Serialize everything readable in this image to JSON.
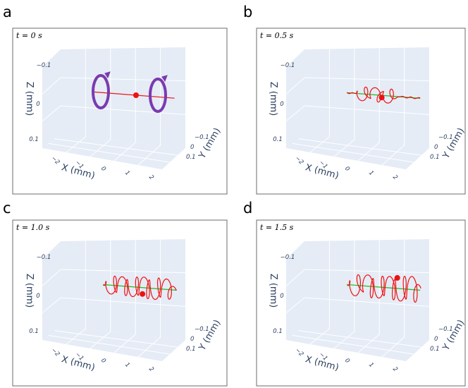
{
  "figure": {
    "panels": [
      {
        "letter": "a",
        "time": "t = 0 s",
        "show_rotation": true
      },
      {
        "letter": "b",
        "time": "t = 0.5 s",
        "show_rotation": false
      },
      {
        "letter": "c",
        "time": "t = 1.0 s",
        "show_rotation": false
      },
      {
        "letter": "d",
        "time": "t = 1.5 s",
        "show_rotation": false
      }
    ],
    "axes": {
      "x_title": "X (mm)",
      "y_title": "Y (mm)",
      "z_title": "Z (mm)",
      "x_ticks": [
        "−2",
        "−1",
        "0",
        "1",
        "2"
      ],
      "y_ticks": [
        "−0.1",
        "0",
        "0.1"
      ],
      "z_ticks": [
        "−0.1",
        "0",
        "0.1"
      ]
    },
    "colors": {
      "pane": "#e5ecf6",
      "axis_text": "#2a3f5f",
      "trajectory": "#ee1111",
      "reference_line": "#22bb22",
      "marker": "#ee1111",
      "rotation_arrow": "#7a3ab0"
    }
  },
  "chart_data": [
    {
      "type": "scatter",
      "subtype": "3d-line",
      "panel": "a",
      "time_s": 0,
      "xlabel": "X (mm)",
      "ylabel": "Y (mm)",
      "zlabel": "Z (mm)",
      "xlim": [
        -2.5,
        2.5
      ],
      "ylim": [
        -0.15,
        0.15
      ],
      "zlim": [
        -0.15,
        0.15
      ],
      "reference_line": "none",
      "rotation_arrows": 2,
      "trajectory": {
        "description": "straight line along x, no displacement",
        "amplitude_mm": 0
      },
      "marker_position_mm": {
        "x": 0,
        "y": 0,
        "z": 0
      }
    },
    {
      "type": "scatter",
      "subtype": "3d-line",
      "panel": "b",
      "time_s": 0.5,
      "xlabel": "X (mm)",
      "ylabel": "Y (mm)",
      "zlabel": "Z (mm)",
      "xlim": [
        -2.5,
        2.5
      ],
      "ylim": [
        -0.15,
        0.15
      ],
      "zlim": [
        -0.15,
        0.15
      ],
      "reference_line": "green straight line along x",
      "trajectory": {
        "loops": 3,
        "loop_center_x_mm": [
          -0.9,
          -0.2,
          0.5
        ],
        "amplitude_mm": 0.04
      },
      "marker_position_mm": {
        "x": 0.1,
        "y": 0,
        "z": 0.01
      }
    },
    {
      "type": "scatter",
      "subtype": "3d-line",
      "panel": "c",
      "time_s": 1.0,
      "xlabel": "X (mm)",
      "ylabel": "Y (mm)",
      "zlabel": "Z (mm)",
      "xlim": [
        -2.5,
        2.5
      ],
      "ylim": [
        -0.15,
        0.15
      ],
      "zlim": [
        -0.15,
        0.15
      ],
      "reference_line": "green straight line along x",
      "trajectory": {
        "loops": 6,
        "loop_center_x_mm": [
          -1.3,
          -0.7,
          -0.1,
          0.5,
          1.1,
          1.7
        ],
        "amplitude_mm": 0.05
      },
      "marker_position_mm": {
        "x": 0.35,
        "y": 0,
        "z": 0.03
      }
    },
    {
      "type": "scatter",
      "subtype": "3d-line",
      "panel": "d",
      "time_s": 1.5,
      "xlabel": "X (mm)",
      "ylabel": "Y (mm)",
      "zlabel": "Z (mm)",
      "xlim": [
        -2.5,
        2.5
      ],
      "ylim": [
        -0.15,
        0.15
      ],
      "zlim": [
        -0.15,
        0.15
      ],
      "reference_line": "green straight line along x",
      "trajectory": {
        "loops": 6,
        "loop_center_x_mm": [
          -1.3,
          -0.6,
          0.0,
          0.6,
          1.2,
          1.8
        ],
        "amplitude_mm": 0.06
      },
      "marker_position_mm": {
        "x": 0.95,
        "y": 0,
        "z": -0.05
      }
    }
  ]
}
